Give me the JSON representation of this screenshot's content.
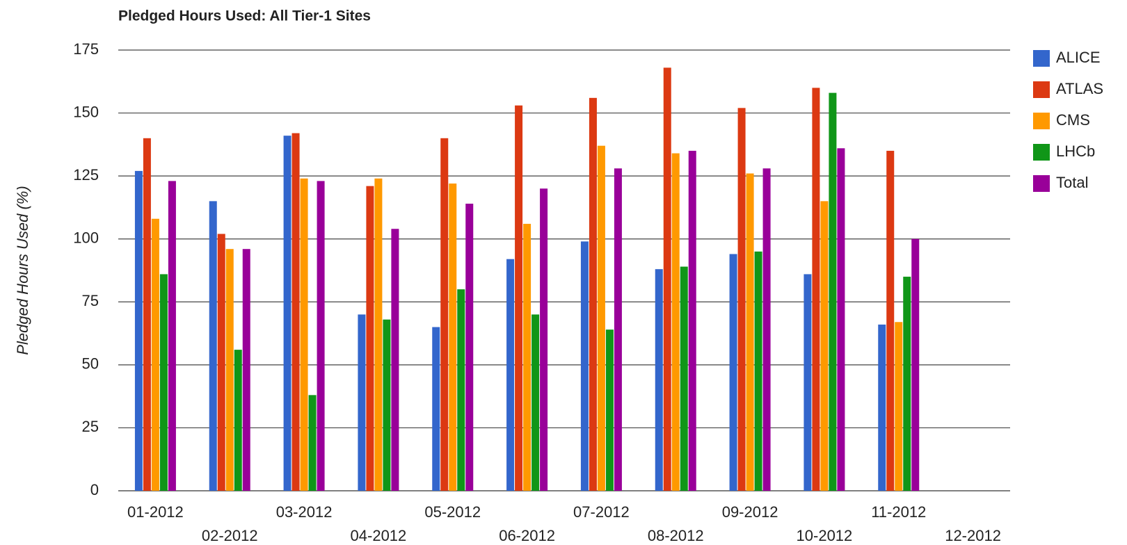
{
  "chart_data": {
    "type": "bar",
    "title": "Pledged Hours Used: All Tier-1 Sites",
    "y_label": "Pledged Hours Used (%)",
    "categories": [
      "01-2012",
      "02-2012",
      "03-2012",
      "04-2012",
      "05-2012",
      "06-2012",
      "07-2012",
      "08-2012",
      "09-2012",
      "10-2012",
      "11-2012",
      "12-2012"
    ],
    "series": [
      {
        "name": "ALICE",
        "color": "#3366cc",
        "values": [
          127,
          115,
          141,
          70,
          65,
          92,
          99,
          88,
          94,
          86,
          66,
          null
        ]
      },
      {
        "name": "ATLAS",
        "color": "#dc3912",
        "values": [
          140,
          102,
          142,
          121,
          140,
          153,
          156,
          168,
          152,
          160,
          135,
          null
        ]
      },
      {
        "name": "CMS",
        "color": "#ff9900",
        "values": [
          108,
          96,
          124,
          124,
          122,
          106,
          137,
          134,
          126,
          115,
          67,
          null
        ]
      },
      {
        "name": "LHCb",
        "color": "#109618",
        "values": [
          86,
          56,
          38,
          68,
          80,
          70,
          64,
          89,
          95,
          158,
          85,
          null
        ]
      },
      {
        "name": "Total",
        "color": "#990099",
        "values": [
          123,
          96,
          123,
          104,
          114,
          120,
          128,
          135,
          128,
          136,
          100,
          null
        ]
      }
    ],
    "ylim": [
      0,
      175
    ],
    "yticks": [
      0,
      25,
      50,
      75,
      100,
      125,
      150,
      175
    ],
    "grid": true,
    "legend": "right"
  }
}
